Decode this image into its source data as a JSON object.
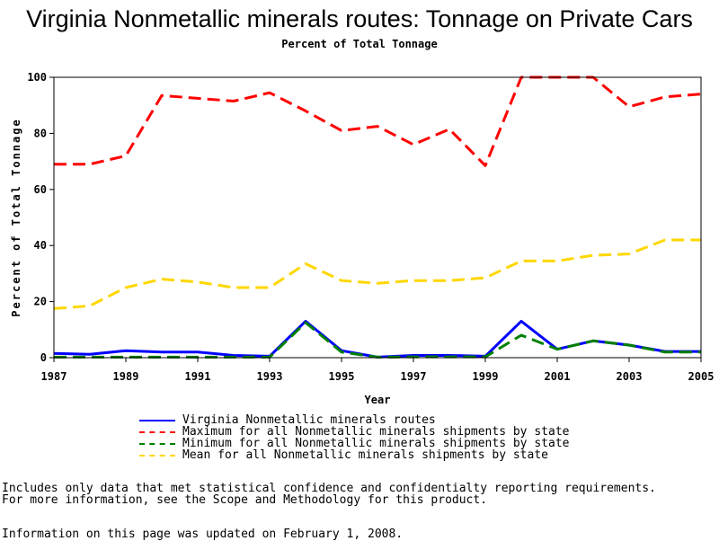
{
  "title": "Virginia Nonmetallic minerals routes: Tonnage on Private Cars",
  "subtitle": "Percent of Total Tonnage",
  "footnotes": {
    "line1": "Includes only data that met statistical confidence and confidentialty reporting requirements.",
    "line2": "For more information, see the Scope and Methodology for this product.",
    "line3": "Information on this page was updated on February 1, 2008."
  },
  "chart_data": {
    "type": "line",
    "title": "Virginia Nonmetallic minerals routes: Tonnage on Private Cars",
    "subtitle": "Percent of Total Tonnage",
    "xlabel": "Year",
    "ylabel": "Percent of Total Tonnage",
    "xlim": [
      1987,
      2005
    ],
    "ylim": [
      0,
      100
    ],
    "x_ticks": [
      "1987",
      "1989",
      "1991",
      "1993",
      "1995",
      "1997",
      "1999",
      "2001",
      "2003",
      "2005"
    ],
    "y_ticks": [
      "0",
      "20",
      "40",
      "60",
      "80",
      "100"
    ],
    "x": [
      1987,
      1988,
      1989,
      1990,
      1991,
      1992,
      1993,
      1994,
      1995,
      1996,
      1997,
      1998,
      1999,
      2000,
      2001,
      2002,
      2003,
      2004,
      2005
    ],
    "legend_position": "bottom",
    "series": [
      {
        "name": "Virginia Nonmetallic minerals routes",
        "color": "#0000ff",
        "dash": "solid",
        "values": [
          1.5,
          1.2,
          2.5,
          2.0,
          2.0,
          0.8,
          0.5,
          13.0,
          2.5,
          0.2,
          0.8,
          0.8,
          0.5,
          13.0,
          3.0,
          6.0,
          4.5,
          2.2,
          2.2
        ]
      },
      {
        "name": "Maximum for all Nonmetallic minerals shipments by state",
        "color": "#ff0000",
        "dash": "dashed",
        "values": [
          69,
          69,
          72,
          93.5,
          92.5,
          91.5,
          94.5,
          88,
          81,
          82.5,
          76,
          81.5,
          68.5,
          100,
          100,
          100,
          89.5,
          93,
          94
        ]
      },
      {
        "name": "Minimum for all Nonmetallic minerals shipments by state",
        "color": "#008000",
        "dash": "dashed",
        "values": [
          0.2,
          0.2,
          0.2,
          0.2,
          0.2,
          0.2,
          0.2,
          12.5,
          2.0,
          0.2,
          0.3,
          0.3,
          0.3,
          8.0,
          3.0,
          6.0,
          4.5,
          2.0,
          2.0
        ]
      },
      {
        "name": "Mean for all Nonmetallic minerals shipments by state",
        "color": "#ffd700",
        "dash": "dashed",
        "values": [
          17.5,
          18.5,
          25,
          28,
          27,
          25,
          25,
          33.5,
          27.5,
          26.5,
          27.5,
          27.5,
          28.5,
          34.5,
          34.5,
          36.5,
          37,
          42,
          42
        ]
      }
    ]
  }
}
